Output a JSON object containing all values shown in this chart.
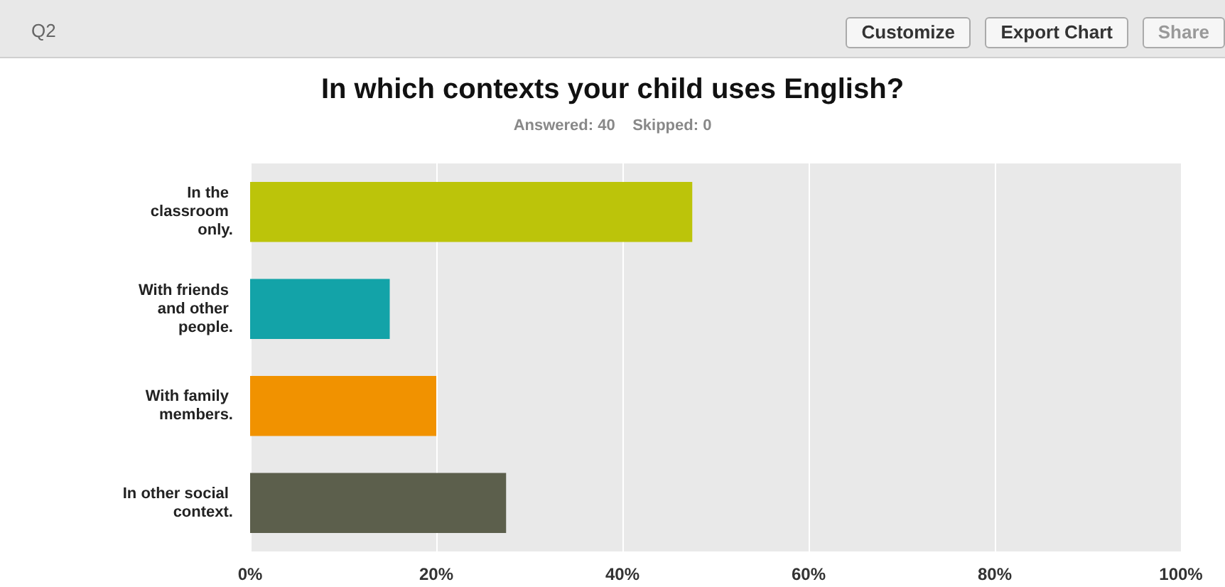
{
  "chart_data": {
    "type": "bar",
    "orientation": "horizontal",
    "title": "In which contexts your child uses English?",
    "subtitle": "Answered: 40    Skipped: 0",
    "categories": [
      "In the classroom only.",
      "With friends and other people.",
      "With family members.",
      "In other social context."
    ],
    "values": [
      47.5,
      15,
      20,
      27.5
    ],
    "colors": [
      "#bcc40a",
      "#13a3a8",
      "#f19200",
      "#5c5f4c"
    ],
    "xlim": [
      0,
      100
    ],
    "xticks": [
      {
        "value": 0,
        "label": "0%"
      },
      {
        "value": 20,
        "label": "20%"
      },
      {
        "value": 40,
        "label": "40%"
      },
      {
        "value": 60,
        "label": "60%"
      },
      {
        "value": 80,
        "label": "80%"
      },
      {
        "value": 100,
        "label": "100%"
      }
    ],
    "grid": "x",
    "annotations": [
      "Q2",
      "Customize",
      "Export Chart",
      "Share"
    ]
  }
}
